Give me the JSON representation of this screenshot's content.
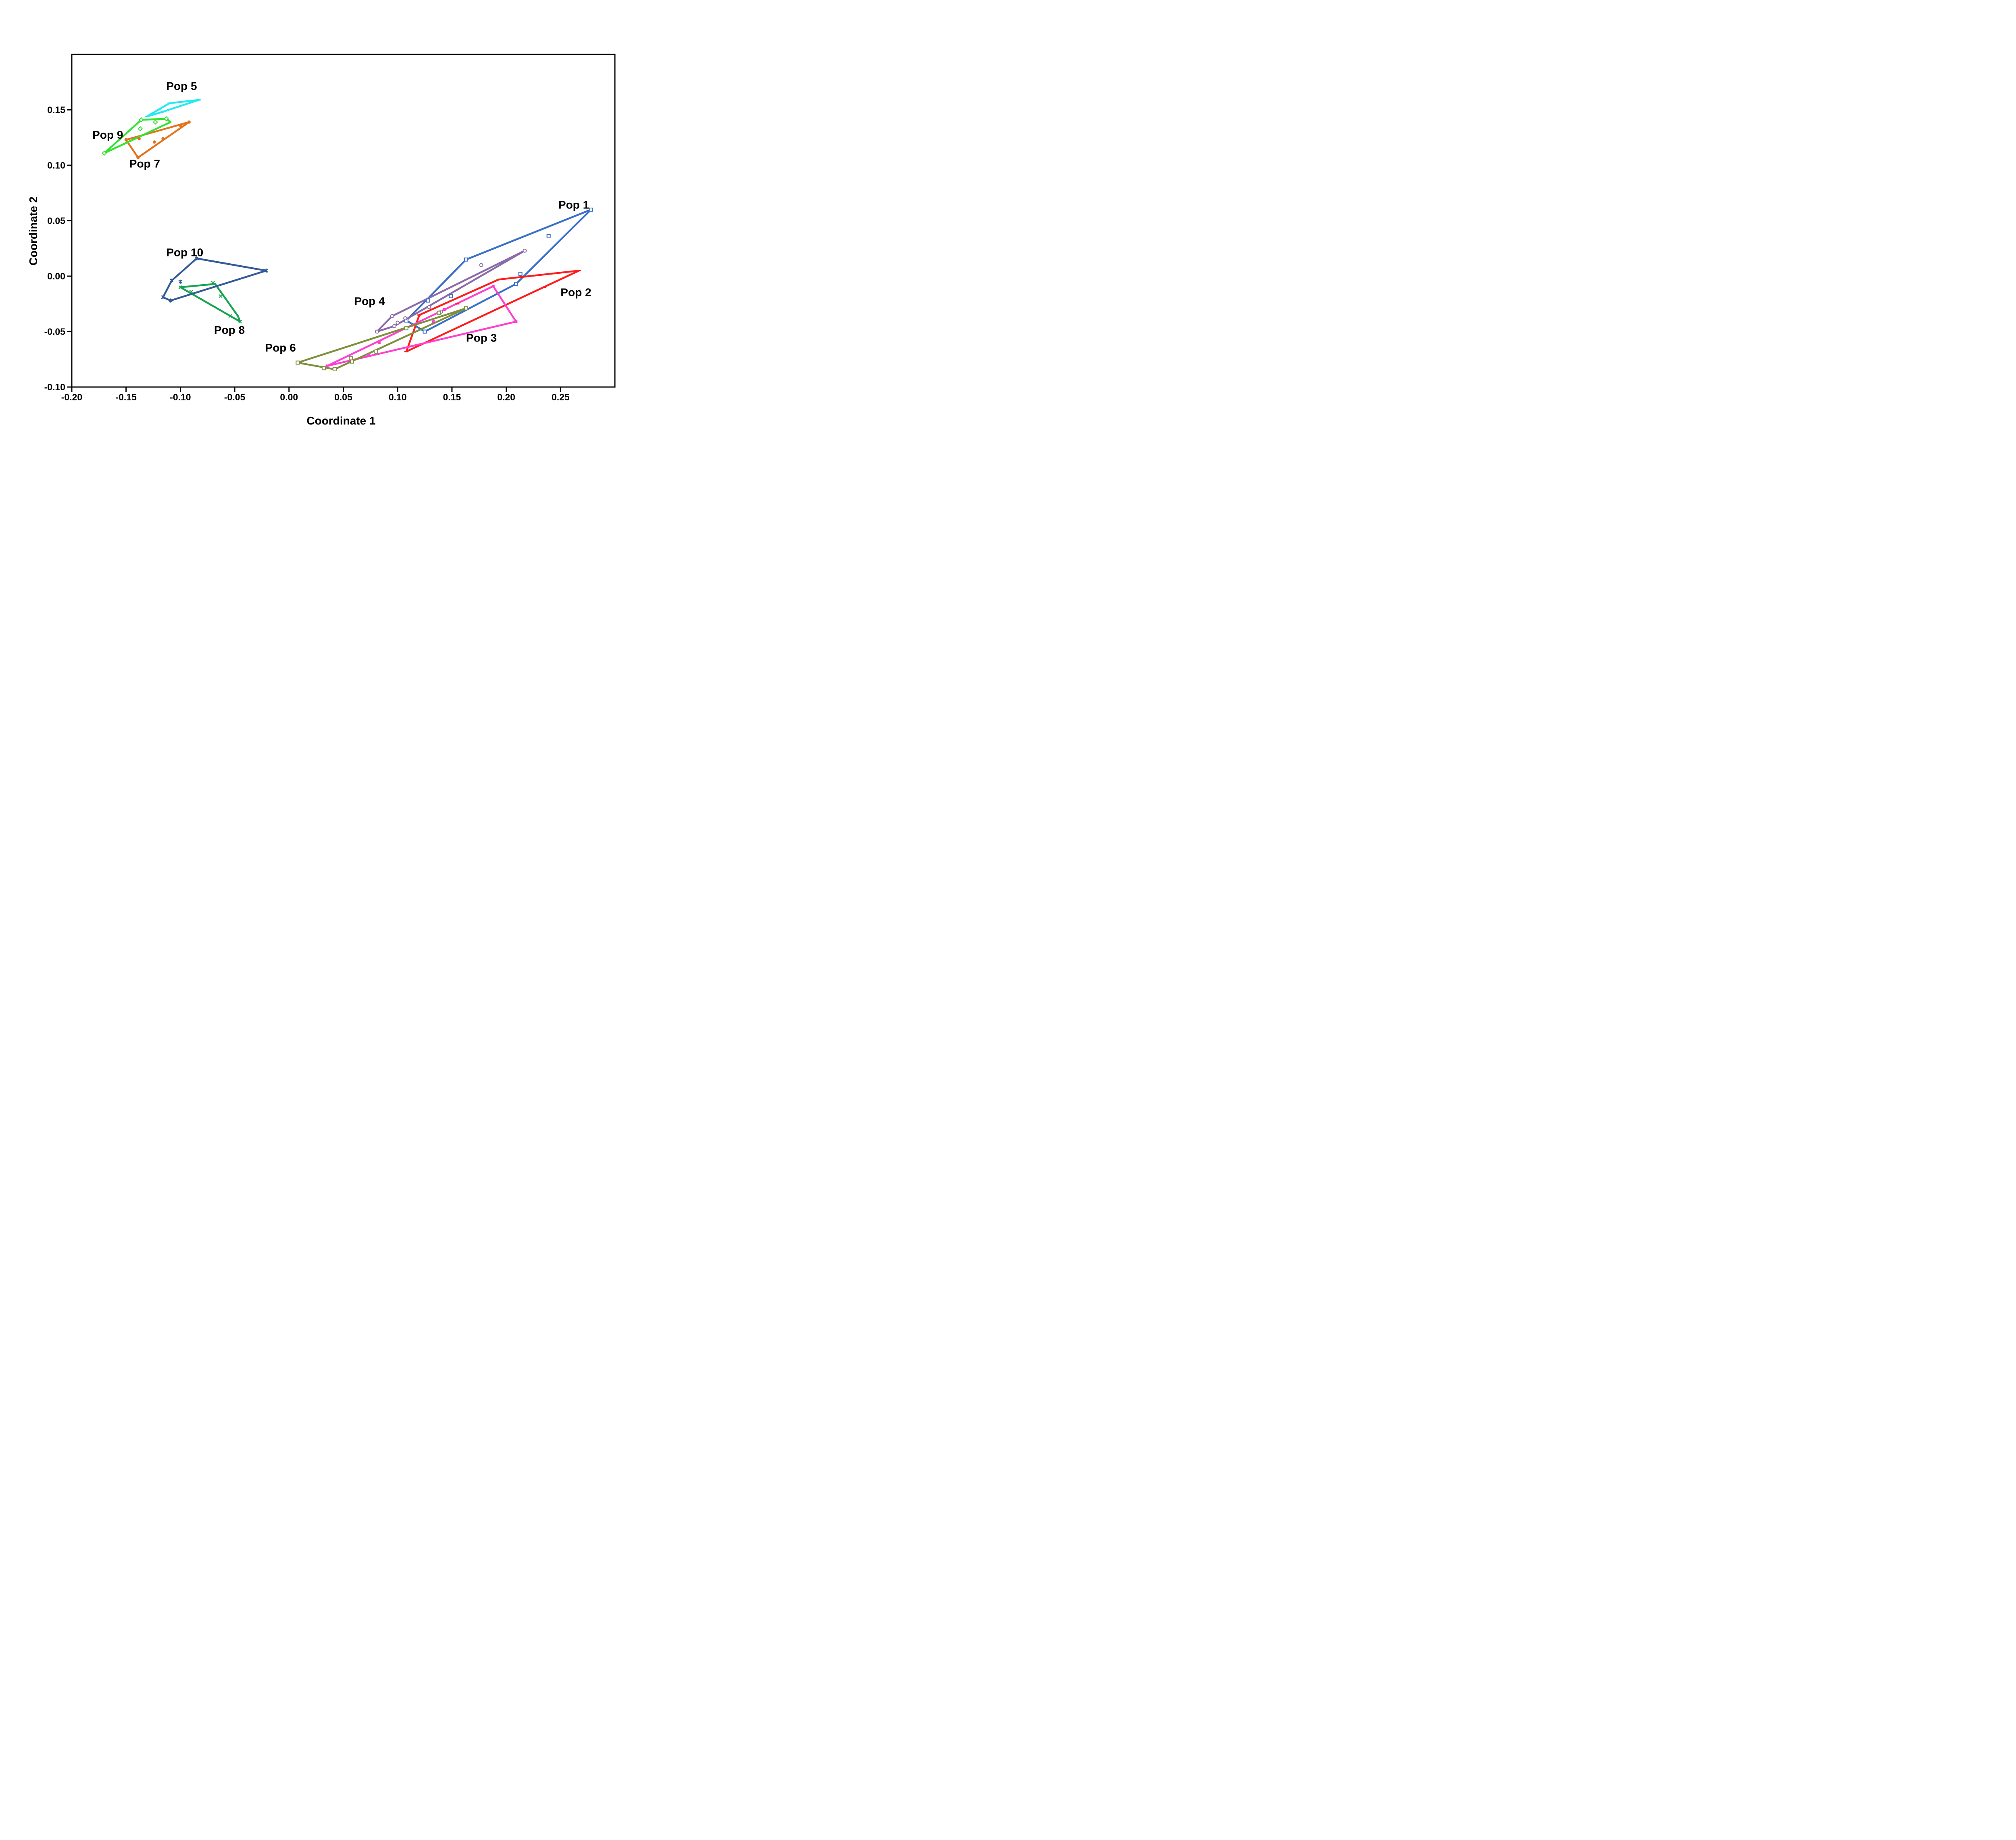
{
  "chart_data": {
    "type": "scatter",
    "title": "",
    "xlabel": "Coordinate 1",
    "ylabel": "Coordinate 2",
    "xlim": [
      -0.2,
      0.3
    ],
    "ylim": [
      -0.1,
      0.2
    ],
    "x_ticks": [
      {
        "value": -0.2,
        "label": "-0.20"
      },
      {
        "value": -0.15,
        "label": "-0.15"
      },
      {
        "value": -0.1,
        "label": "-0.10"
      },
      {
        "value": -0.05,
        "label": "-0.05"
      },
      {
        "value": 0.0,
        "label": "0.00"
      },
      {
        "value": 0.05,
        "label": "0.05"
      },
      {
        "value": 0.1,
        "label": "0.10"
      },
      {
        "value": 0.15,
        "label": "0.15"
      },
      {
        "value": 0.2,
        "label": "0.20"
      },
      {
        "value": 0.25,
        "label": "0.25"
      }
    ],
    "y_ticks": [
      {
        "value": -0.1,
        "label": "-0.10"
      },
      {
        "value": -0.05,
        "label": "-0.05"
      },
      {
        "value": 0.0,
        "label": "0.00"
      },
      {
        "value": 0.05,
        "label": "0.05"
      },
      {
        "value": 0.1,
        "label": "0.10"
      },
      {
        "value": 0.15,
        "label": "0.15"
      }
    ],
    "grid": false,
    "legend": "none",
    "series": [
      {
        "name": "Pop 1",
        "color": "#3a6fc8",
        "marker": "open-square",
        "label_at": [
          0.248,
          0.061
        ],
        "points": [
          [
            0.278,
            0.06
          ],
          [
            0.239,
            0.036
          ],
          [
            0.163,
            0.015
          ],
          [
            0.213,
            0.002
          ],
          [
            0.149,
            -0.018
          ],
          [
            0.128,
            -0.022
          ],
          [
            0.108,
            -0.04
          ],
          [
            0.125,
            -0.05
          ],
          [
            0.209,
            -0.007
          ]
        ],
        "hull": [
          [
            0.278,
            0.06
          ],
          [
            0.163,
            0.015
          ],
          [
            0.108,
            -0.04
          ],
          [
            0.125,
            -0.05
          ],
          [
            0.209,
            -0.007
          ]
        ]
      },
      {
        "name": "Pop 2",
        "color": "#ff1c1c",
        "marker": "dash",
        "label_at": [
          0.25,
          -0.018
        ],
        "points": [
          [
            0.267,
            0.005
          ],
          [
            0.193,
            -0.003
          ],
          [
            0.12,
            -0.035
          ],
          [
            0.108,
            -0.068
          ],
          [
            0.155,
            -0.025
          ],
          [
            0.235,
            -0.01
          ]
        ],
        "hull": [
          [
            0.267,
            0.005
          ],
          [
            0.193,
            -0.003
          ],
          [
            0.12,
            -0.035
          ],
          [
            0.108,
            -0.068
          ]
        ]
      },
      {
        "name": "Pop 3",
        "color": "#ff3fd0",
        "marker": "filled-square",
        "label_at": [
          0.163,
          -0.059
        ],
        "points": [
          [
            0.188,
            -0.009
          ],
          [
            0.209,
            -0.041
          ],
          [
            0.143,
            -0.03
          ],
          [
            0.133,
            -0.041
          ],
          [
            0.083,
            -0.06
          ],
          [
            0.073,
            -0.071
          ],
          [
            0.035,
            -0.081
          ]
        ],
        "hull": [
          [
            0.188,
            -0.009
          ],
          [
            0.209,
            -0.041
          ],
          [
            0.035,
            -0.081
          ]
        ]
      },
      {
        "name": "Pop 4",
        "color": "#8a6aa8",
        "marker": "open-circle",
        "label_at": [
          0.06,
          -0.026
        ],
        "points": [
          [
            0.217,
            0.023
          ],
          [
            0.177,
            0.01
          ],
          [
            0.095,
            -0.036
          ],
          [
            0.1,
            -0.042
          ],
          [
            0.107,
            -0.038
          ],
          [
            0.097,
            -0.045
          ],
          [
            0.081,
            -0.05
          ],
          [
            0.129,
            -0.028
          ],
          [
            0.14,
            -0.032
          ]
        ],
        "hull": [
          [
            0.217,
            0.023
          ],
          [
            0.095,
            -0.036
          ],
          [
            0.081,
            -0.05
          ],
          [
            0.097,
            -0.045
          ]
        ]
      },
      {
        "name": "Pop 5",
        "color": "#22eaf2",
        "marker": "dash",
        "label_at": [
          -0.113,
          0.168
        ],
        "points": [
          [
            -0.083,
            0.159
          ],
          [
            -0.11,
            0.156
          ],
          [
            -0.12,
            0.15
          ],
          [
            -0.131,
            0.144
          ],
          [
            -0.117,
            0.148
          ]
        ],
        "hull": [
          [
            -0.083,
            0.159
          ],
          [
            -0.11,
            0.156
          ],
          [
            -0.131,
            0.144
          ],
          [
            -0.117,
            0.148
          ]
        ]
      },
      {
        "name": "Pop 6",
        "color": "#7d8f3b",
        "marker": "open-square",
        "label_at": [
          -0.022,
          -0.068
        ],
        "points": [
          [
            0.163,
            -0.029
          ],
          [
            0.008,
            -0.078
          ],
          [
            0.042,
            -0.084
          ],
          [
            0.058,
            -0.077
          ],
          [
            0.057,
            -0.074
          ],
          [
            0.08,
            -0.068
          ],
          [
            0.108,
            -0.047
          ],
          [
            0.138,
            -0.033
          ],
          [
            0.032,
            -0.083
          ]
        ],
        "hull": [
          [
            0.163,
            -0.029
          ],
          [
            0.008,
            -0.078
          ],
          [
            0.042,
            -0.084
          ]
        ]
      },
      {
        "name": "Pop 7",
        "color": "#e2731b",
        "marker": "filled-circle",
        "label_at": [
          -0.147,
          0.098
        ],
        "points": [
          [
            -0.092,
            0.139
          ],
          [
            -0.1,
            0.136
          ],
          [
            -0.138,
            0.124
          ],
          [
            -0.15,
            0.123
          ],
          [
            -0.124,
            0.121
          ],
          [
            -0.116,
            0.124
          ],
          [
            -0.139,
            0.107
          ]
        ],
        "hull": [
          [
            -0.092,
            0.139
          ],
          [
            -0.15,
            0.123
          ],
          [
            -0.139,
            0.107
          ]
        ]
      },
      {
        "name": "Pop 8",
        "color": "#17a351",
        "marker": "cross",
        "label_at": [
          -0.069,
          -0.052
        ],
        "points": [
          [
            -0.07,
            -0.006
          ],
          [
            -0.063,
            -0.018
          ],
          [
            -0.054,
            -0.036
          ],
          [
            -0.045,
            -0.041
          ],
          [
            -0.1,
            -0.01
          ],
          [
            -0.09,
            -0.014
          ]
        ],
        "hull": [
          [
            -0.1,
            -0.01
          ],
          [
            -0.068,
            -0.007
          ],
          [
            -0.047,
            -0.036
          ],
          [
            -0.045,
            -0.041
          ]
        ]
      },
      {
        "name": "Pop 9",
        "color": "#32e332",
        "marker": "diamond",
        "label_at": [
          -0.181,
          0.124
        ],
        "points": [
          [
            -0.137,
            0.133
          ],
          [
            -0.123,
            0.139
          ],
          [
            -0.113,
            0.142
          ],
          [
            -0.136,
            0.141
          ],
          [
            -0.17,
            0.111
          ]
        ],
        "hull": [
          [
            -0.17,
            0.111
          ],
          [
            -0.136,
            0.141
          ],
          [
            -0.113,
            0.142
          ],
          [
            -0.109,
            0.139
          ]
        ]
      },
      {
        "name": "Pop 10",
        "color": "#335a98",
        "marker": "asterisk",
        "label_at": [
          -0.113,
          0.018
        ],
        "points": [
          [
            -0.021,
            0.005
          ],
          [
            -0.085,
            0.016
          ],
          [
            -0.108,
            -0.004
          ],
          [
            -0.1,
            -0.005
          ],
          [
            -0.116,
            -0.019
          ],
          [
            -0.109,
            -0.022
          ]
        ],
        "hull": [
          [
            -0.021,
            0.005
          ],
          [
            -0.085,
            0.016
          ],
          [
            -0.108,
            -0.004
          ],
          [
            -0.116,
            -0.019
          ],
          [
            -0.109,
            -0.022
          ]
        ]
      }
    ]
  }
}
